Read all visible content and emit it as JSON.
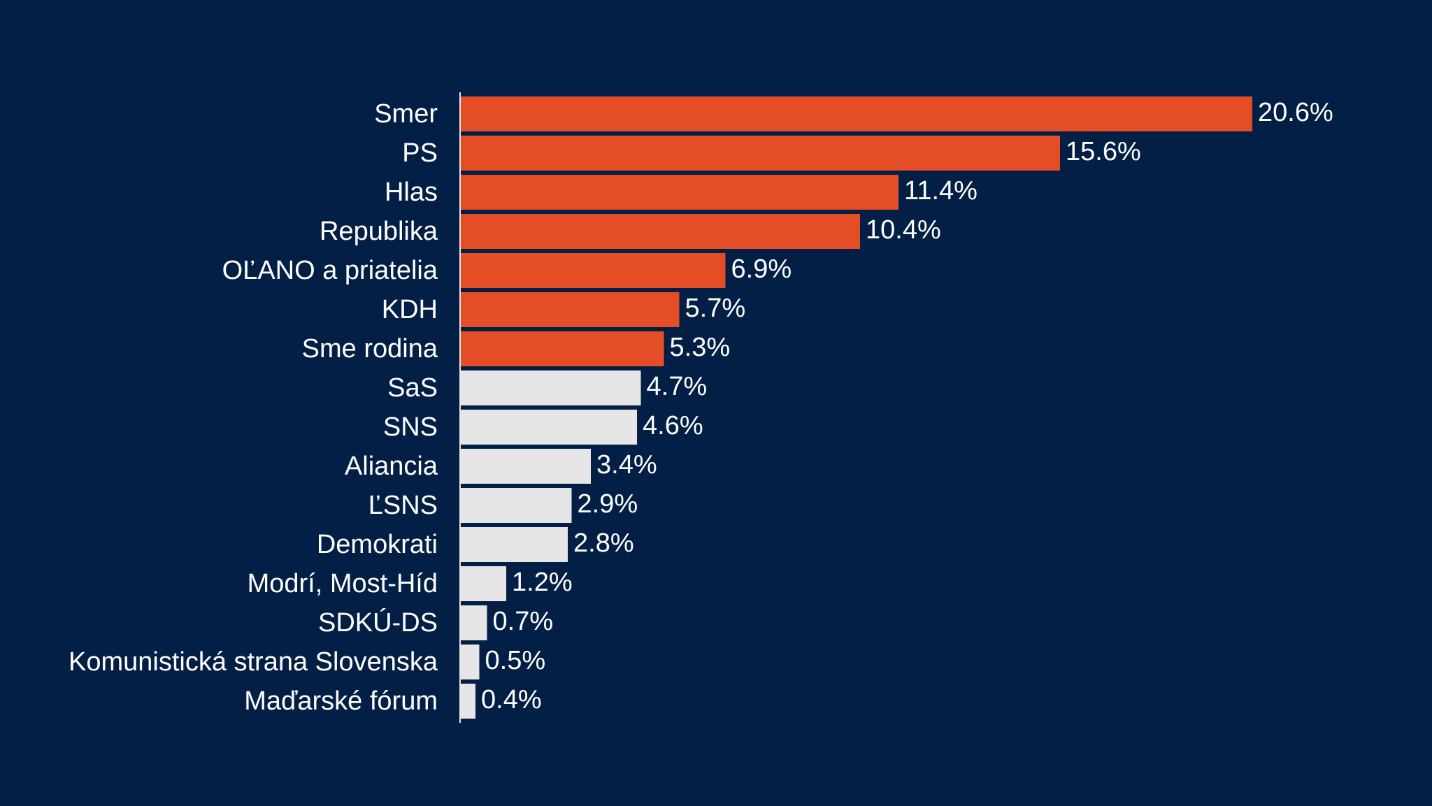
{
  "chart_data": {
    "type": "bar",
    "orientation": "horizontal",
    "categories": [
      "Smer",
      "PS",
      "Hlas",
      "Republika",
      "OĽANO a priatelia",
      "KDH",
      "Sme rodina",
      "SaS",
      "SNS",
      "Aliancia",
      "ĽSNS",
      "Demokrati",
      "Modrí, Most-Híd",
      "SDKÚ-DS",
      "Komunistická strana Slovenska",
      "Maďarské fórum"
    ],
    "values": [
      20.6,
      15.6,
      11.4,
      10.4,
      6.9,
      5.7,
      5.3,
      4.7,
      4.6,
      3.4,
      2.9,
      2.8,
      1.2,
      0.7,
      0.5,
      0.4
    ],
    "value_labels": [
      "20.6%",
      "15.6%",
      "11.4%",
      "10.4%",
      "6.9%",
      "5.7%",
      "5.3%",
      "4.7%",
      "4.6%",
      "3.4%",
      "2.9%",
      "2.8%",
      "1.2%",
      "0.7%",
      "0.5%",
      "0.4%"
    ],
    "title": "",
    "xlabel": "",
    "ylabel": "",
    "grid": false,
    "threshold": 5,
    "colors": {
      "background": "#031f45",
      "above_threshold": "#e44d26",
      "below_threshold": "#e6e6e6",
      "text": "#ffffff",
      "axis": "#e6e6e6"
    }
  }
}
